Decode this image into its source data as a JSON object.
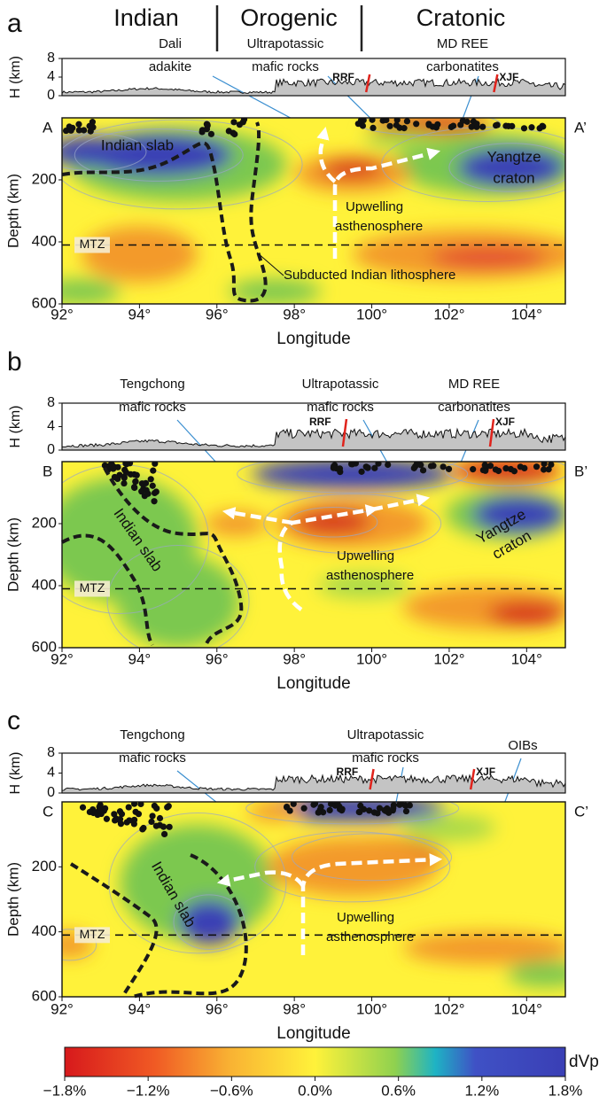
{
  "header": {
    "left": "Indian",
    "middle": "Orogenic",
    "right": "Cratonic"
  },
  "axes": {
    "h_label": "H (km)",
    "h_ticks": [
      "8",
      "4",
      "0"
    ],
    "depth_label": "Depth (km)",
    "depth_ticks": [
      "200",
      "400",
      "600"
    ],
    "longitude_label": "Longitude",
    "longitude_ticks": [
      "92°",
      "94°",
      "96°",
      "98°",
      "100°",
      "102°",
      "104°"
    ],
    "mtz": "MTZ",
    "faults": [
      "RRF",
      "XJF"
    ]
  },
  "panels": [
    {
      "label": "a",
      "start": "A",
      "end": "A’",
      "notes": [
        [
          "Dali",
          "adakite"
        ],
        [
          "Ultrapotassic",
          "mafic rocks"
        ],
        [
          "MD REE",
          "carbonatites"
        ]
      ],
      "slab": "Indian slab",
      "craton": [
        "Yangtze",
        "craton"
      ],
      "upwelling": [
        "Upwelling",
        "asthenosphere"
      ],
      "lithosphere": "Subducted Indian lithosphere"
    },
    {
      "label": "b",
      "start": "B",
      "end": "B’",
      "notes": [
        [
          "Tengchong",
          "mafic rocks"
        ],
        [
          "Ultrapotassic",
          "mafic rocks"
        ],
        [
          "MD REE",
          "carbonatites"
        ]
      ],
      "slab": "Indian slab",
      "craton": [
        "Yangtze",
        "craton"
      ],
      "upwelling": [
        "Upwelling",
        "asthenosphere"
      ]
    },
    {
      "label": "c",
      "start": "C",
      "end": "C’",
      "notes": [
        [
          "Tengchong",
          "mafic rocks"
        ],
        [
          "Ultrapotassic",
          "mafic rocks"
        ],
        [
          "OIBs"
        ]
      ],
      "slab": "Indian slab",
      "upwelling": [
        "Upwelling",
        "asthenosphere"
      ]
    }
  ],
  "colorbar": {
    "label": "dVp",
    "ticks": [
      "−1.8%",
      "−1.2%",
      "−0.6%",
      "0.0%",
      "0.6%",
      "1.2%",
      "1.8%"
    ]
  }
}
